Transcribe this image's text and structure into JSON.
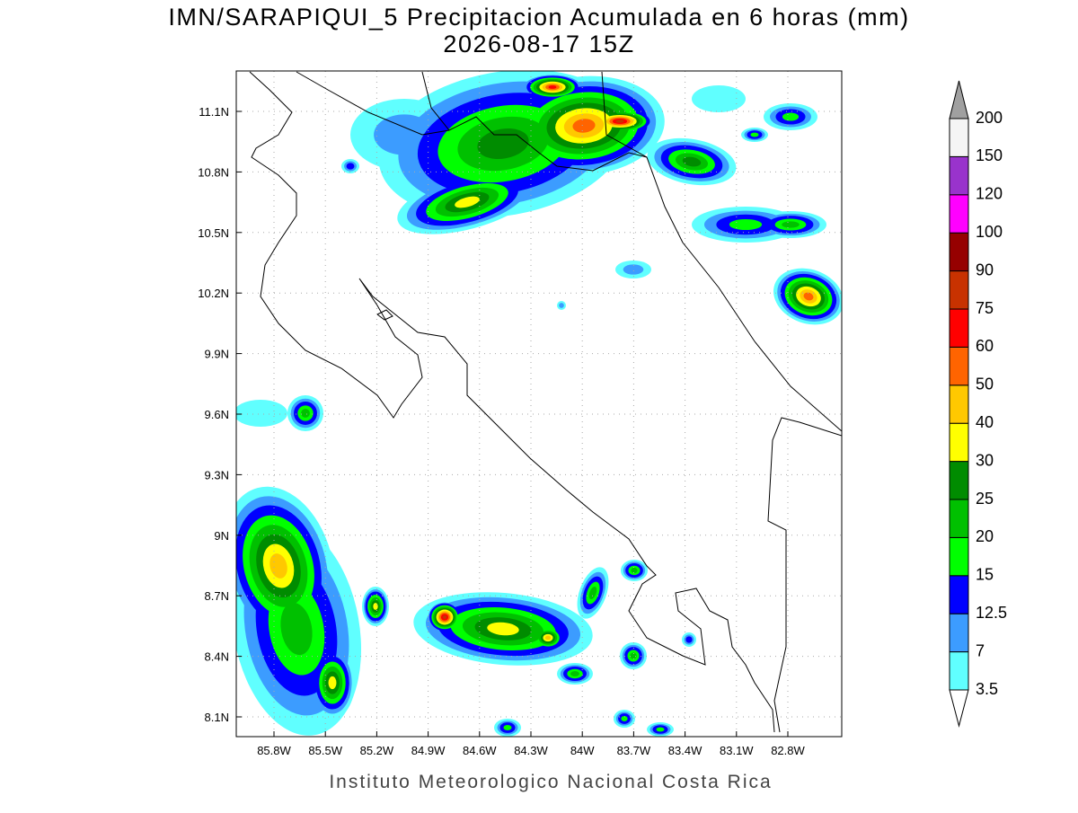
{
  "title": "IMN/SARAPIQUI_5 Precipitacion Acumulada en 6 horas (mm)",
  "subtitle": "2026-08-17 15Z",
  "map": {
    "lon_labels": [
      "85.8W",
      "85.5W",
      "85.2W",
      "84.9W",
      "84.6W",
      "84.3W",
      "84W",
      "83.7W",
      "83.4W",
      "83.1W",
      "82.8W"
    ],
    "lat_labels": [
      "11.1N",
      "10.8N",
      "10.5N",
      "10.2N",
      "9.9N",
      "9.6N",
      "9.3N",
      "9N",
      "8.7N",
      "8.4N",
      "8.1N"
    ]
  },
  "colorbar": {
    "levels": [
      3.5,
      7,
      12.5,
      15,
      20,
      25,
      30,
      40,
      50,
      60,
      75,
      90,
      100,
      120,
      150,
      200
    ],
    "colors": [
      "#60ffff",
      "#3c9cff",
      "#0000ff",
      "#00ff00",
      "#00c000",
      "#008c00",
      "#ffff00",
      "#ffc800",
      "#ff6400",
      "#ff0000",
      "#c83200",
      "#960000",
      "#ff00ff",
      "#9933cc",
      "#f5f5f5"
    ],
    "under_color": "#ffffff",
    "over_color": "#a0a0a0"
  },
  "footer": "Instituto Meteorologico Nacional Costa Rica"
}
